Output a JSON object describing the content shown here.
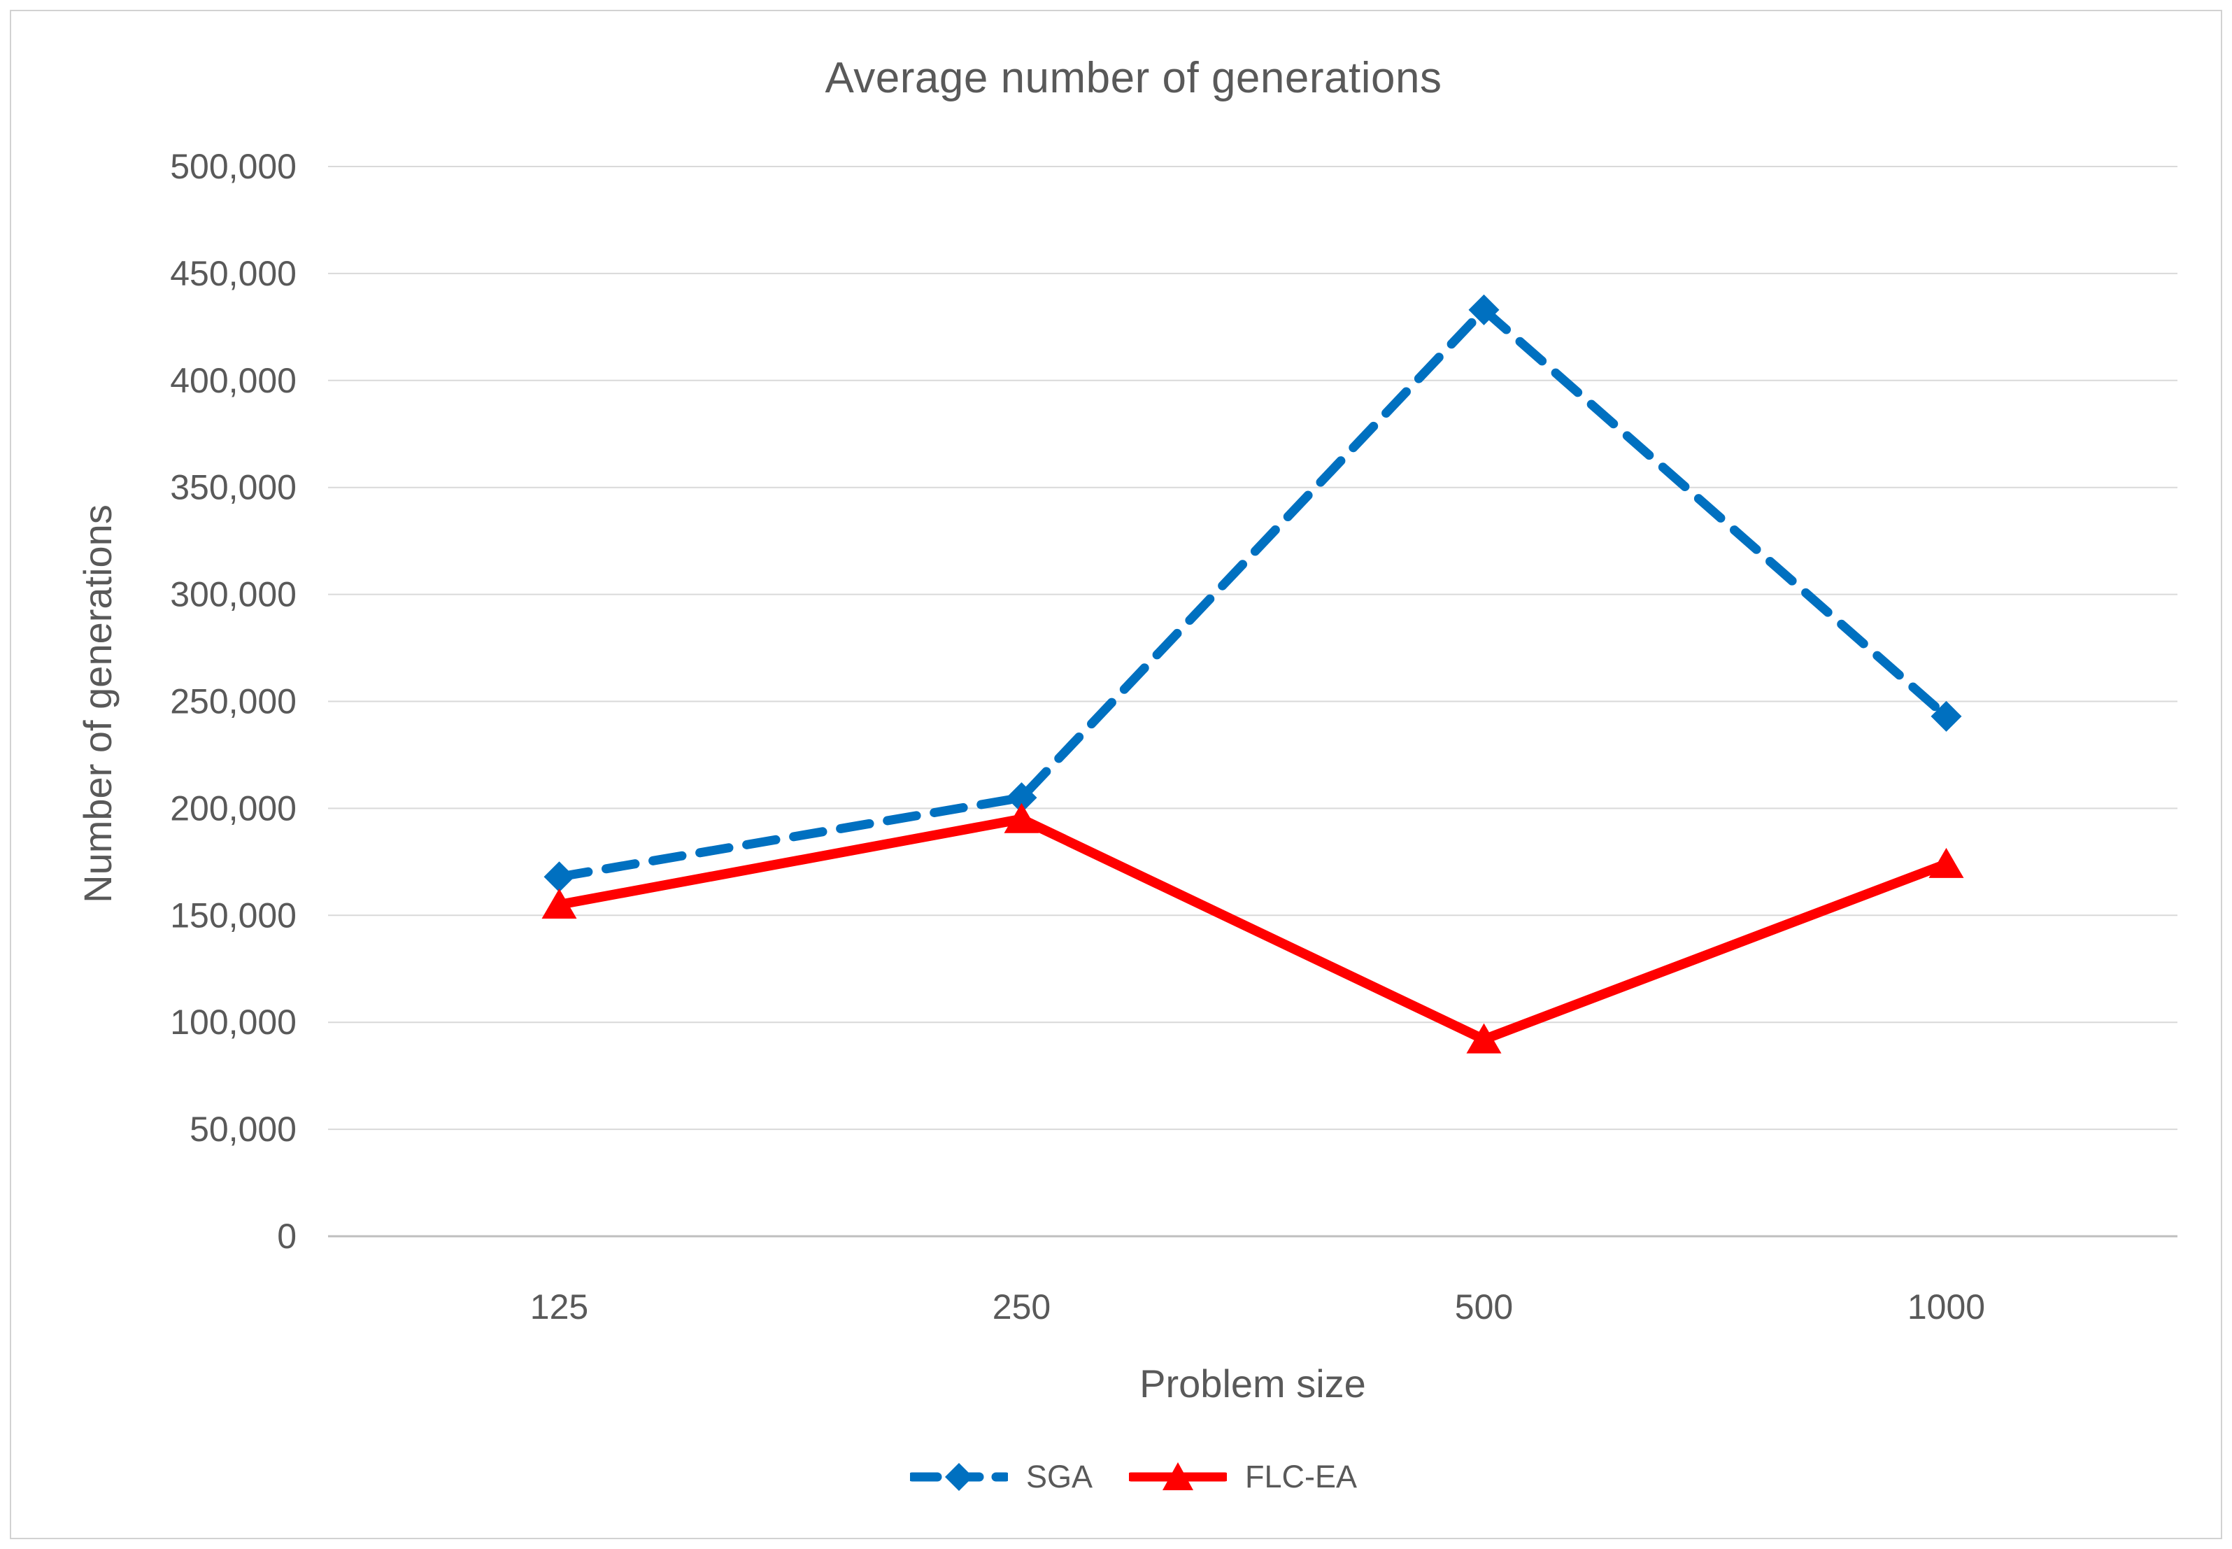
{
  "figure": {
    "background": "#FFFFFF",
    "border_color": "#D2D2D2"
  },
  "chart_data": {
    "type": "line",
    "title": "Average number of generations",
    "xlabel": "Problem size",
    "ylabel": "Number of generations",
    "categories": [
      "125",
      "250",
      "500",
      "1000"
    ],
    "series": [
      {
        "name": "SGA",
        "values": [
          168000,
          205000,
          433000,
          243000
        ],
        "color": "#0070C0",
        "line_style": "dashed",
        "marker": "diamond"
      },
      {
        "name": "FLC-EA",
        "values": [
          155000,
          195000,
          92000,
          174000
        ],
        "color": "#FF0000",
        "line_style": "solid",
        "marker": "triangle-up"
      }
    ],
    "ylim": [
      0,
      500000
    ],
    "y_tick_step": 50000,
    "y_tick_labels": [
      "0",
      "50,000",
      "100,000",
      "150,000",
      "200,000",
      "250,000",
      "300,000",
      "350,000",
      "400,000",
      "450,000",
      "500,000"
    ],
    "grid": "horizontal-only",
    "legend_position": "bottom",
    "text_color": "#595959",
    "gridline_color": "#D9D9D9",
    "axis_line_color": "#BFBFBF"
  }
}
